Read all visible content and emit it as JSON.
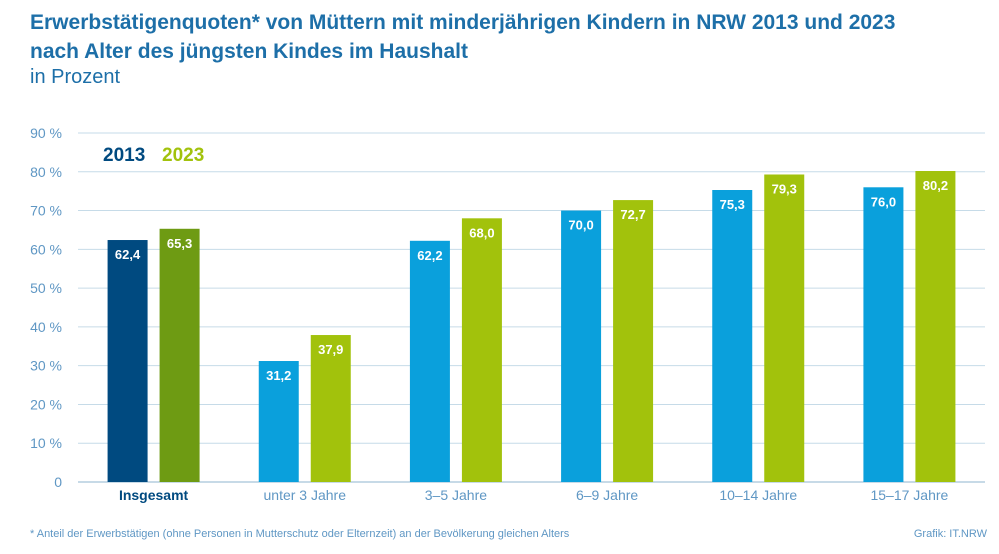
{
  "title_line1": "Erwerbstätigenquoten* von Müttern mit minderjährigen Kindern in NRW 2013 und 2023",
  "title_line2": "nach Alter des jüngsten Kindes im Haushalt",
  "subtitle": "in Prozent",
  "footnote": "*  Anteil der Erwerbstätigen (ohne Personen in Mutterschutz oder Elternzeit) an der Bevölkerung gleichen Alters",
  "credit": "Grafik: IT.NRW",
  "chart_data": {
    "type": "bar",
    "categories": [
      "Insgesamt",
      "unter 3 Jahre",
      "3–5 Jahre",
      "6–9 Jahre",
      "10–14 Jahre",
      "15–17 Jahre"
    ],
    "series": [
      {
        "name": "2013",
        "values": [
          62.4,
          31.2,
          62.2,
          70.0,
          75.3,
          76.0
        ],
        "labels": [
          "62,4",
          "31,2",
          "62,2",
          "70,0",
          "75,3",
          "76,0"
        ]
      },
      {
        "name": "2023",
        "values": [
          65.3,
          37.9,
          68.0,
          72.7,
          79.3,
          80.2
        ],
        "labels": [
          "65,3",
          "37,9",
          "68,0",
          "72,7",
          "79,3",
          "80,2"
        ]
      }
    ],
    "ylim": [
      0,
      90
    ],
    "yticks": [
      0,
      10,
      20,
      30,
      40,
      50,
      60,
      70,
      80,
      90
    ],
    "ytick_labels": [
      "0",
      "10 %",
      "20 %",
      "30 %",
      "40 %",
      "50 %",
      "60 %",
      "70 %",
      "80 %",
      "90 %"
    ],
    "legend": [
      "2013",
      "2023"
    ],
    "legend_position": "top-left",
    "grid": true,
    "colors": {
      "2013": "#0aa0dc",
      "2023": "#a2c20c",
      "2013_total": "#004a80",
      "2023_total": "#6e9b13",
      "title": "#1d6fa8",
      "axis_text": "#5f97c4",
      "grid": "#c6dbe8"
    }
  }
}
